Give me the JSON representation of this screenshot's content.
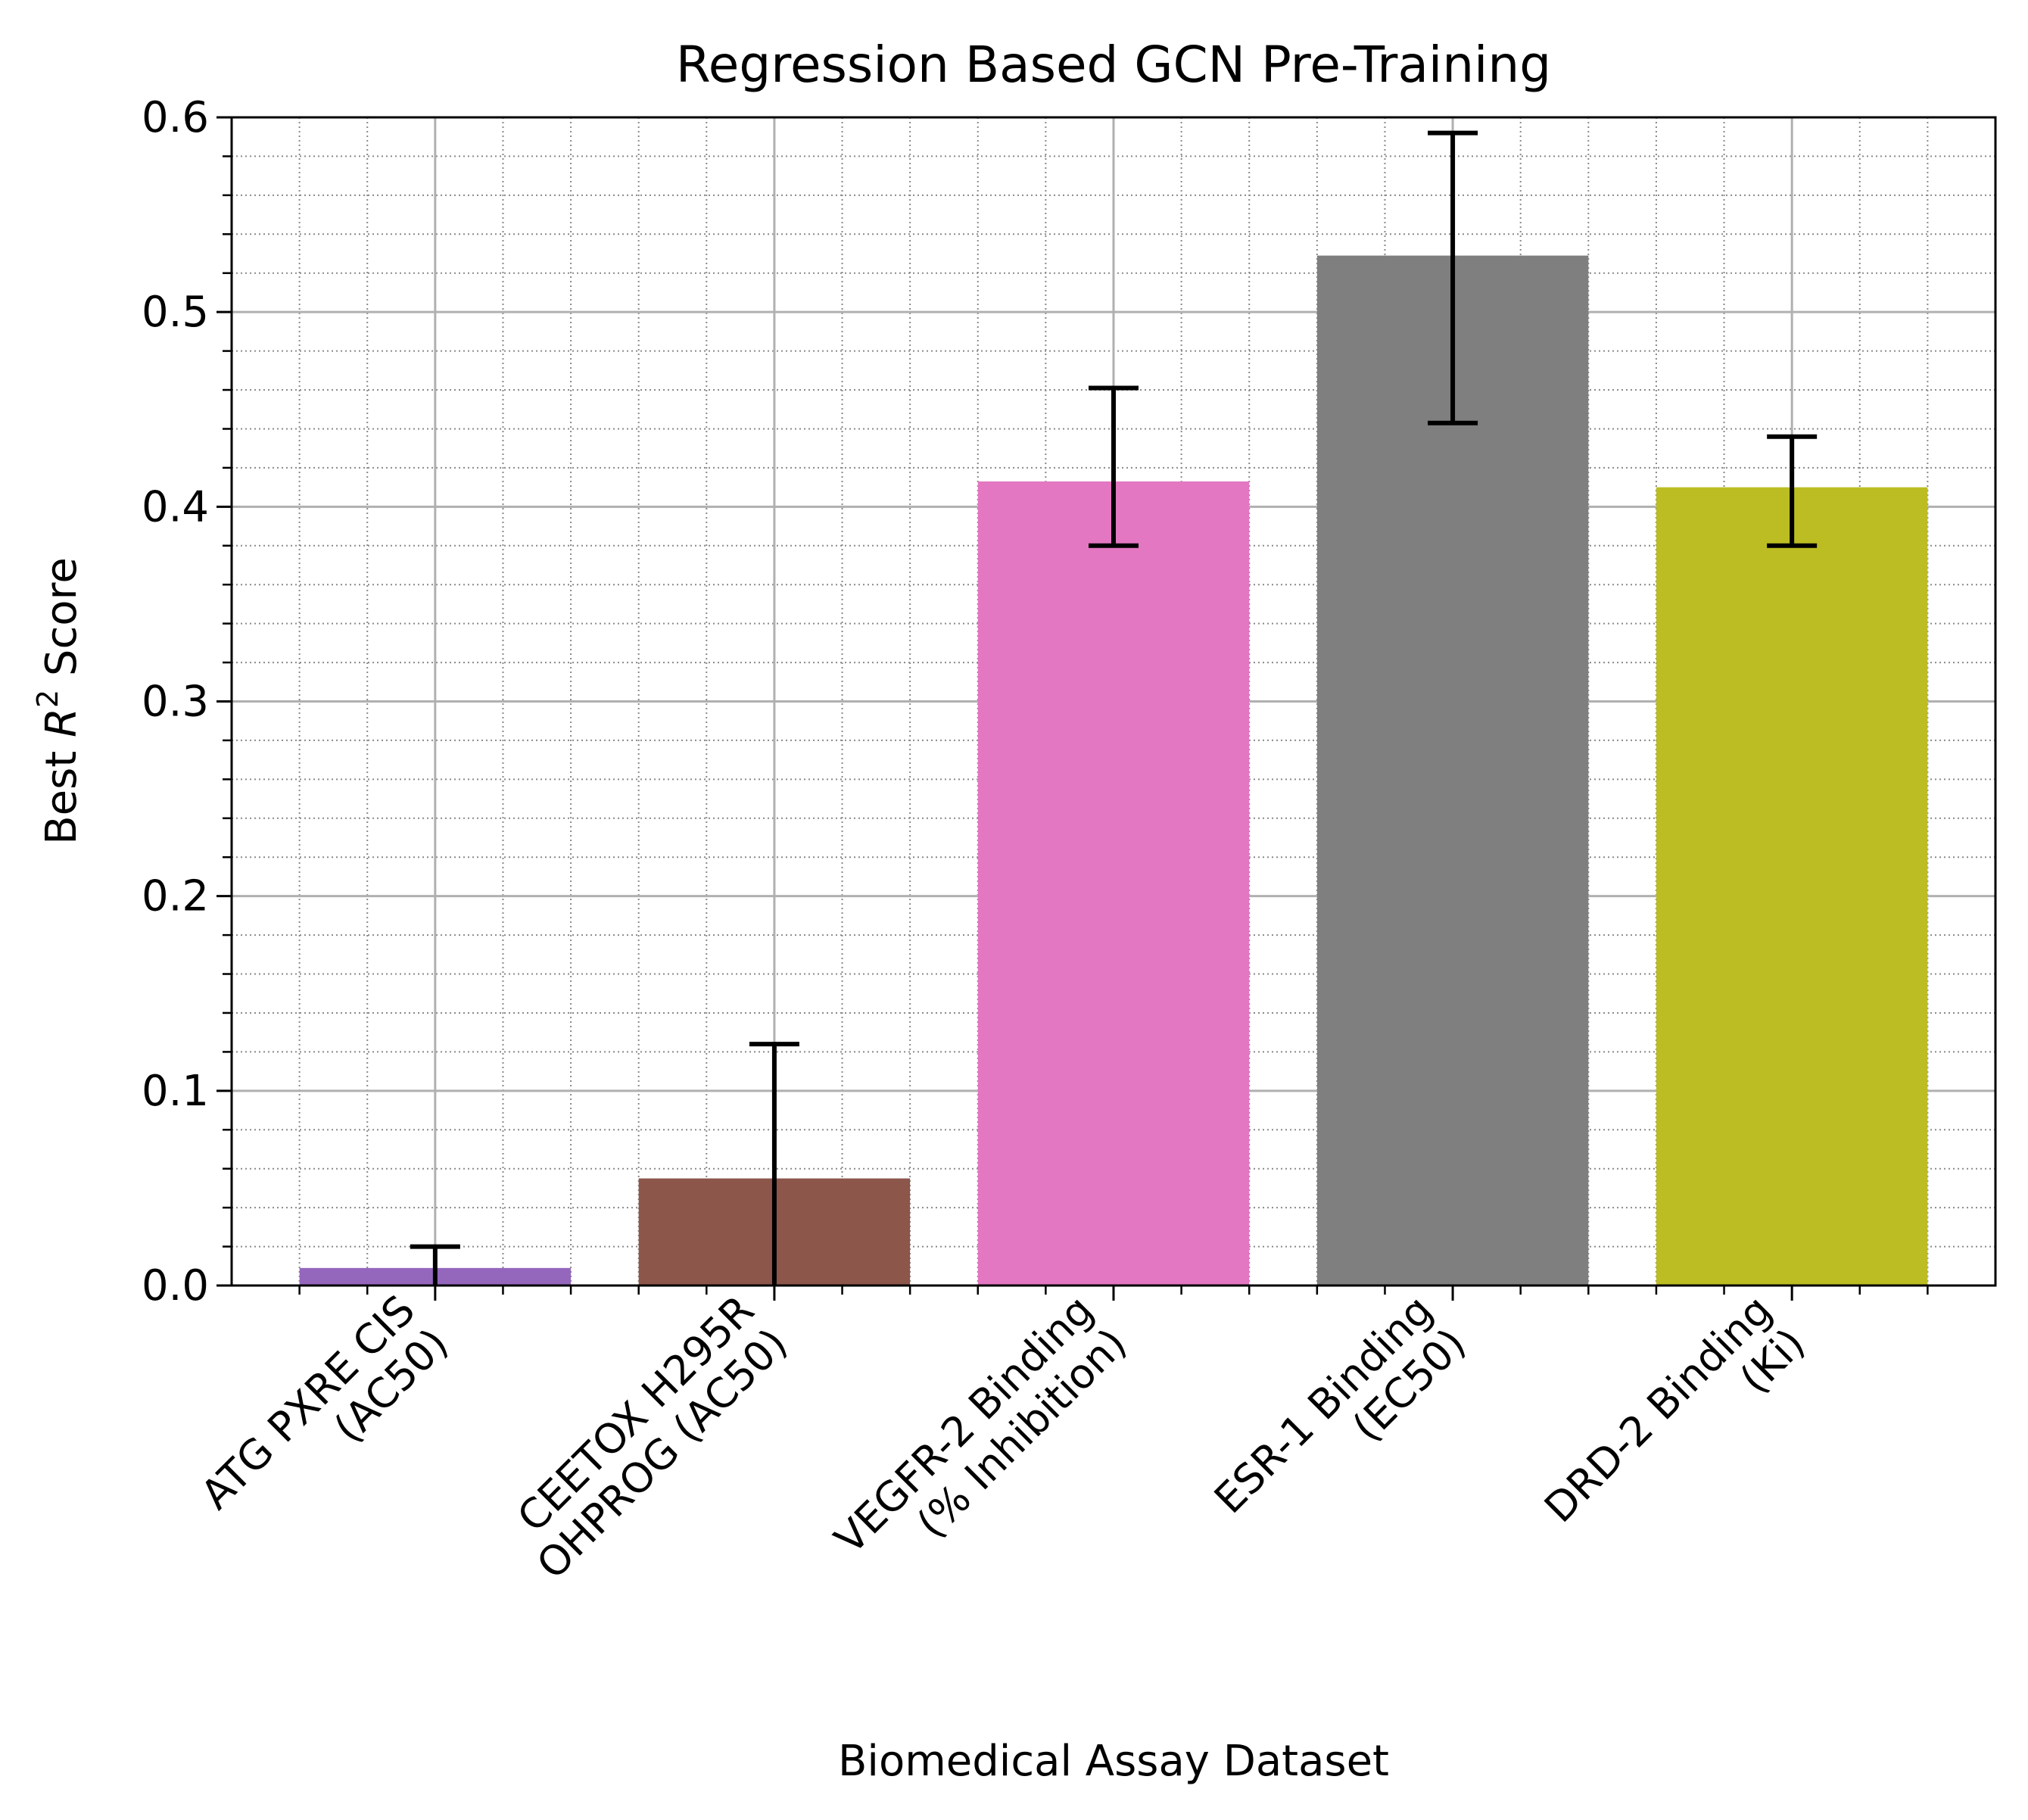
{
  "chart_data": {
    "type": "bar",
    "title": "Regression Based GCN Pre-Training",
    "xlabel": "Biomedical Assay Dataset",
    "ylabel_prefix": "Best ",
    "ylabel_var": "R",
    "ylabel_sup": "2",
    "ylabel_suffix": " Score",
    "ylim": [
      0,
      0.6
    ],
    "yticks": [
      0.0,
      0.1,
      0.2,
      0.3,
      0.4,
      0.5,
      0.6
    ],
    "ytick_labels": [
      "0.0",
      "0.1",
      "0.2",
      "0.3",
      "0.4",
      "0.5",
      "0.6"
    ],
    "grid": "major solid, minor dotted",
    "categories": [
      [
        "ATG PXRE CIS",
        "(AC50)"
      ],
      [
        "CEETOX H295R",
        "OHPROG (AC50)"
      ],
      [
        "VEGFR-2 Binding",
        "(% Inhibition)"
      ],
      [
        "ESR-1 Binding",
        "(EC50)"
      ],
      [
        "DRD-2 Binding",
        "(Ki)"
      ]
    ],
    "values": [
      0.009,
      0.055,
      0.413,
      0.529,
      0.41
    ],
    "error_low": [
      0.0,
      0.0,
      0.38,
      0.443,
      0.38
    ],
    "error_high": [
      0.02,
      0.124,
      0.461,
      0.592,
      0.436
    ],
    "colors": [
      "#9467bd",
      "#8c564b",
      "#e377c2",
      "#7f7f7f",
      "#bcbd22"
    ]
  }
}
